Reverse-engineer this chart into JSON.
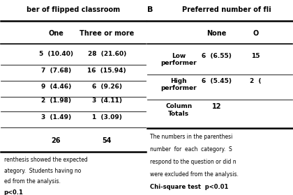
{
  "panel_A": {
    "title": "ber of flipped classroom",
    "col_headers": [
      "One",
      "Three or more"
    ],
    "rows": [
      [
        "5  (10.40)",
        "28  (21.60)"
      ],
      [
        "7  (7.68)",
        "16  (15.94)"
      ],
      [
        "9  (4.46)",
        "6  (9.26)"
      ],
      [
        "2  (1.98)",
        "3  (4.11)"
      ],
      [
        "3  (1.49)",
        "1  (3.09)"
      ]
    ],
    "totals": [
      "26",
      "54"
    ],
    "note_lines": [
      "renthesis showed the expected",
      "ategory.  Students having no",
      "ed from the analysis.",
      "p<0.1"
    ]
  },
  "panel_B": {
    "label": "B",
    "title": "Preferred number of fli",
    "col_headers": [
      "None",
      "O"
    ],
    "rows": [
      [
        "Low\nperformer",
        "6  (6.55)",
        "15"
      ],
      [
        "High\nperformer",
        "6  (5.45)",
        "2  ("
      ]
    ],
    "totals_label": "Column\nTotals",
    "totals": [
      "12",
      ""
    ],
    "note_lines": [
      "The numbers in the parenthesi",
      "number  for  each  category.  S",
      "respond to the question or did n",
      "were excluded from the analysis.",
      "Chi-square test  p<0.01"
    ]
  },
  "bg_color": "#ffffff",
  "text_color": "#000000",
  "line_color": "#000000"
}
